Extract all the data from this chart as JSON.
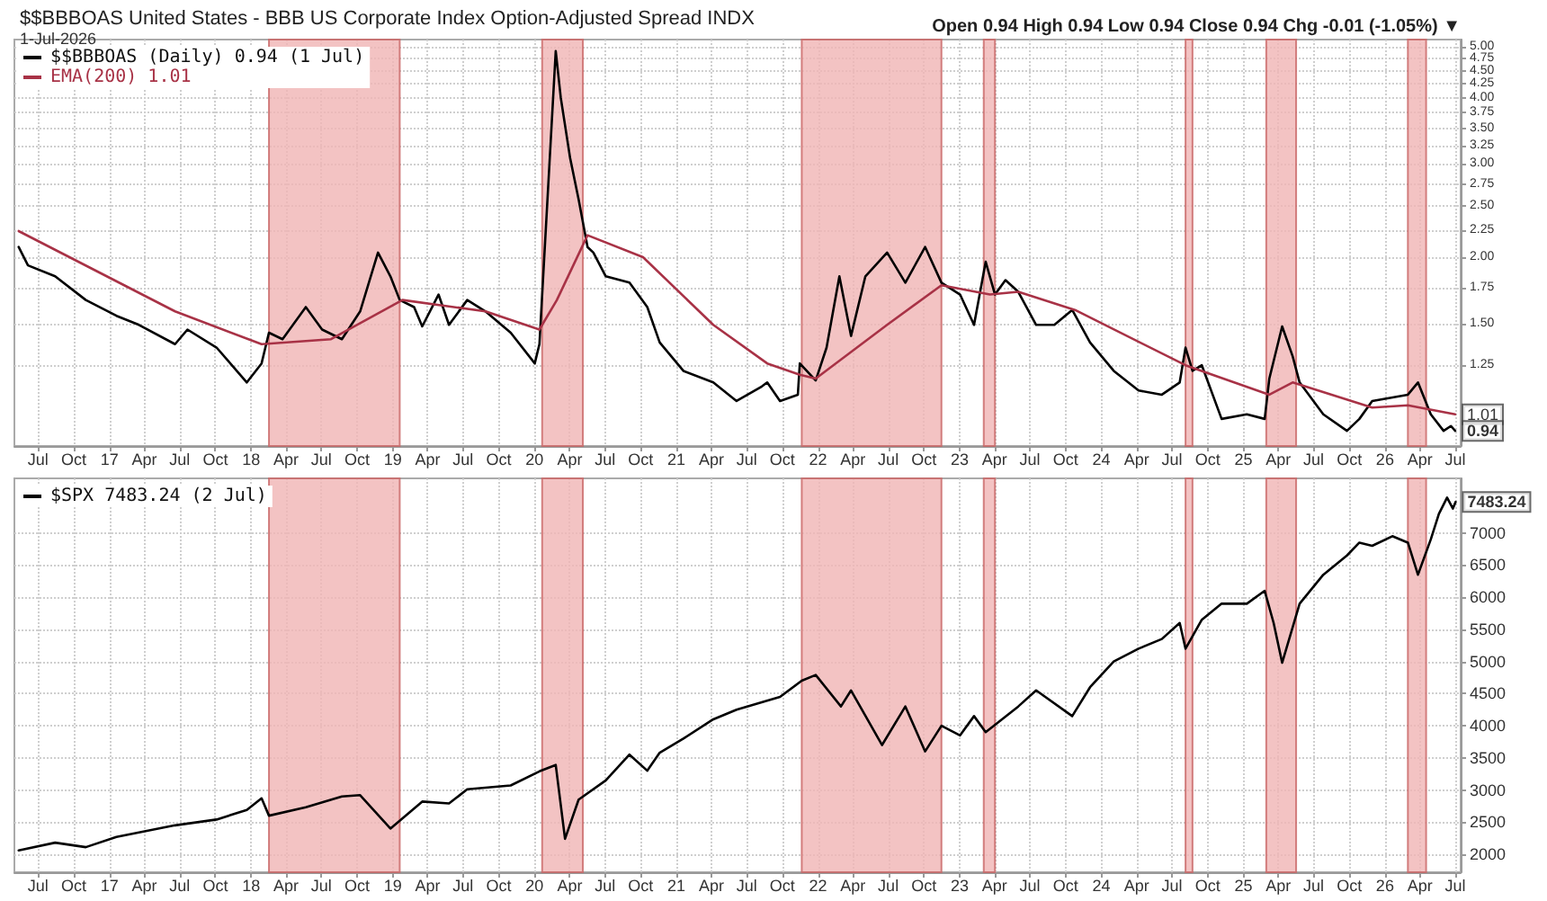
{
  "chart_data": [
    {
      "type": "line",
      "title": "$$BBBOAS United States - BBB US Corporate Index Option-Adjusted Spread INDX",
      "subtitle": "1-Jul-2026",
      "annotations": [
        "Open 0.94 High 0.94 Low 0.94 Close 0.94 Chg -0.01 (-1.05%) ▼",
        {
          "text": "1.01",
          "x": "2026-07-01",
          "y": 1.01
        },
        {
          "text": "0.94",
          "x": "2026-07-01",
          "y": 0.94
        }
      ],
      "series": [
        {
          "name": "$$BBBOAS (Daily) 0.94 (1 Jul)",
          "color": "#000000",
          "x": [
            "2016-05-12",
            "2016-06-05",
            "2016-08-14",
            "2016-11-01",
            "2017-01-19",
            "2017-03-18",
            "2017-06-19",
            "2017-07-21",
            "2017-10-04",
            "2017-12-21",
            "2018-01-28",
            "2018-02-16",
            "2018-03-23",
            "2018-05-22",
            "2018-07-03",
            "2018-08-23",
            "2018-10-09",
            "2018-11-24",
            "2018-12-26",
            "2019-01-19",
            "2019-02-25",
            "2019-03-18",
            "2019-04-29",
            "2019-05-26",
            "2019-07-12",
            "2019-08-28",
            "2019-11-01",
            "2020-01-02",
            "2020-01-14",
            "2020-02-25",
            "2020-03-09",
            "2020-04-02",
            "2020-04-24",
            "2020-05-17",
            "2020-06-01",
            "2020-07-03",
            "2020-09-02",
            "2020-10-18",
            "2020-11-19",
            "2021-01-19",
            "2021-04-06",
            "2021-06-05",
            "2021-08-09",
            "2021-08-23",
            "2021-09-25",
            "2021-11-10",
            "2021-11-15",
            "2021-12-26",
            "2022-01-23",
            "2022-02-25",
            "2022-03-27",
            "2022-05-03",
            "2022-06-28",
            "2022-08-14",
            "2022-10-04",
            "2022-11-15",
            "2023-01-02",
            "2023-02-07",
            "2023-03-09",
            "2023-04-02",
            "2023-04-29",
            "2023-06-01",
            "2023-07-17",
            "2023-09-02",
            "2023-10-18",
            "2023-12-03",
            "2024-02-02",
            "2024-04-06",
            "2024-06-05",
            "2024-07-21",
            "2024-08-05",
            "2024-08-23",
            "2024-09-16",
            "2024-11-06",
            "2025-01-10",
            "2025-02-25",
            "2025-03-09",
            "2025-04-11",
            "2025-05-08",
            "2025-05-26",
            "2025-07-26",
            "2025-09-25",
            "2025-10-27",
            "2025-11-29",
            "2026-03-01",
            "2026-03-27",
            "2026-04-29",
            "2026-06-01",
            "2026-06-20",
            "2026-07-01"
          ],
          "values": [
            2.09,
            1.93,
            1.84,
            1.66,
            1.55,
            1.49,
            1.37,
            1.46,
            1.35,
            1.16,
            1.26,
            1.44,
            1.4,
            1.61,
            1.46,
            1.4,
            1.58,
            2.04,
            1.84,
            1.66,
            1.61,
            1.48,
            1.7,
            1.49,
            1.66,
            1.58,
            1.44,
            1.26,
            1.37,
            4.9,
            4.0,
            3.08,
            2.57,
            2.09,
            2.04,
            1.84,
            1.79,
            1.61,
            1.38,
            1.22,
            1.16,
            1.07,
            1.14,
            1.16,
            1.07,
            1.1,
            1.26,
            1.17,
            1.35,
            1.84,
            1.42,
            1.84,
            2.04,
            1.79,
            2.09,
            1.79,
            1.7,
            1.49,
            1.96,
            1.7,
            1.81,
            1.72,
            1.49,
            1.49,
            1.59,
            1.38,
            1.22,
            1.12,
            1.1,
            1.16,
            1.35,
            1.22,
            1.25,
            0.99,
            1.01,
            0.99,
            1.18,
            1.48,
            1.3,
            1.16,
            1.01,
            0.94,
            0.99,
            1.07,
            1.1,
            1.16,
            1.01,
            0.94,
            0.96,
            0.94
          ]
        },
        {
          "name": "EMA(200) 1.01",
          "color": "#a83246",
          "x": [
            "2016-05-12",
            "2017-06-19",
            "2018-01-28",
            "2018-07-26",
            "2019-01-26",
            "2019-08-28",
            "2020-01-14",
            "2020-02-28",
            "2020-05-17",
            "2020-10-07",
            "2021-04-06",
            "2021-08-23",
            "2021-11-15",
            "2021-12-26",
            "2022-06-28",
            "2022-11-15",
            "2023-03-20",
            "2023-06-01",
            "2023-10-25",
            "2024-08-05",
            "2025-03-09",
            "2025-05-08",
            "2025-11-29",
            "2026-03-01",
            "2026-07-01"
          ],
          "values": [
            2.24,
            1.58,
            1.37,
            1.4,
            1.66,
            1.58,
            1.46,
            1.66,
            2.2,
            2.0,
            1.49,
            1.26,
            1.2,
            1.18,
            1.49,
            1.77,
            1.7,
            1.72,
            1.59,
            1.25,
            1.1,
            1.16,
            1.04,
            1.05,
            1.01
          ]
        }
      ],
      "bands": [
        {
          "axis": "x",
          "from": "2018-02-16",
          "to": "2019-01-19",
          "color": "#f0b4b4"
        },
        {
          "axis": "x",
          "from": "2020-01-21",
          "to": "2020-05-05",
          "color": "#f0b4b4"
        },
        {
          "axis": "x",
          "from": "2021-11-20",
          "to": "2022-11-15",
          "color": "#f0b4b4"
        },
        {
          "axis": "x",
          "from": "2023-03-04",
          "to": "2023-04-02",
          "color": "#f0b4b4"
        },
        {
          "axis": "x",
          "from": "2024-08-05",
          "to": "2024-08-23",
          "color": "#f0b4b4"
        },
        {
          "axis": "x",
          "from": "2025-03-01",
          "to": "2025-05-17",
          "color": "#f0b4b4"
        },
        {
          "axis": "x",
          "from": "2026-03-01",
          "to": "2026-04-17",
          "color": "#f0b4b4"
        }
      ],
      "xlim": [
        "2016-05-01",
        "2026-07-15"
      ],
      "log": "y",
      "ylim": [
        0.88,
        5.15
      ],
      "yticks": [
        1.25,
        {
          "value": 1.5,
          "label": "1.50"
        },
        1.75,
        {
          "value": 2,
          "label": "2.00"
        },
        2.25,
        {
          "value": 2.5,
          "label": "2.50"
        },
        2.75,
        {
          "value": 3,
          "label": "3.00"
        },
        3.25,
        {
          "value": 3.5,
          "label": "3.50"
        },
        3.75,
        {
          "value": 4,
          "label": "4.00"
        },
        4.25,
        {
          "value": 4.5,
          "label": "4.50"
        },
        4.75,
        {
          "value": 5,
          "label": "5.00"
        }
      ],
      "xticks": [
        {
          "value": "2016-07",
          "label": "Jul"
        },
        {
          "value": "2016-10",
          "label": "Oct"
        },
        {
          "value": "2017-01",
          "label": "17"
        },
        {
          "value": "2017-04",
          "label": "Apr"
        },
        {
          "value": "2017-07",
          "label": "Jul"
        },
        {
          "value": "2017-10",
          "label": "Oct"
        },
        {
          "value": "2018-01",
          "label": "18"
        },
        {
          "value": "2018-04",
          "label": "Apr"
        },
        {
          "value": "2018-07",
          "label": "Jul"
        },
        {
          "value": "2018-10",
          "label": "Oct"
        },
        {
          "value": "2019-01",
          "label": "19"
        },
        {
          "value": "2019-04",
          "label": "Apr"
        },
        {
          "value": "2019-07",
          "label": "Jul"
        },
        {
          "value": "2019-10",
          "label": "Oct"
        },
        {
          "value": "2020-01",
          "label": "20"
        },
        {
          "value": "2020-04",
          "label": "Apr"
        },
        {
          "value": "2020-07",
          "label": "Jul"
        },
        {
          "value": "2020-10",
          "label": "Oct"
        },
        {
          "value": "2021-01",
          "label": "21"
        },
        {
          "value": "2021-04",
          "label": "Apr"
        },
        {
          "value": "2021-07",
          "label": "Jul"
        },
        {
          "value": "2021-10",
          "label": "Oct"
        },
        {
          "value": "2022-01",
          "label": "22"
        },
        {
          "value": "2022-04",
          "label": "Apr"
        },
        {
          "value": "2022-07",
          "label": "Jul"
        },
        {
          "value": "2022-10",
          "label": "Oct"
        },
        {
          "value": "2023-01",
          "label": "23"
        },
        {
          "value": "2023-04",
          "label": "Apr"
        },
        {
          "value": "2023-07",
          "label": "Jul"
        },
        {
          "value": "2023-10",
          "label": "Oct"
        },
        {
          "value": "2024-01",
          "label": "24"
        },
        {
          "value": "2024-04",
          "label": "Apr"
        },
        {
          "value": "2024-07",
          "label": "Jul"
        },
        {
          "value": "2024-10",
          "label": "Oct"
        },
        {
          "value": "2025-01",
          "label": "25"
        },
        {
          "value": "2025-04",
          "label": "Apr"
        },
        {
          "value": "2025-07",
          "label": "Jul"
        },
        {
          "value": "2025-10",
          "label": "Oct"
        },
        {
          "value": "2026-01",
          "label": "26"
        },
        {
          "value": "2026-04",
          "label": "Apr"
        },
        {
          "value": "2026-07",
          "label": "Jul"
        }
      ],
      "grid": true,
      "legend": "top left"
    },
    {
      "type": "line",
      "annotations": [
        {
          "text": "7483.24",
          "x": "2026-07-02",
          "y": 7483.24
        }
      ],
      "series": [
        {
          "name": "$SPX 7483.24 (2 Jul)",
          "color": "#000000",
          "x": [
            "2016-05-12",
            "2016-08-14",
            "2016-11-01",
            "2017-01-19",
            "2017-06-19",
            "2017-10-04",
            "2017-12-21",
            "2018-01-28",
            "2018-02-16",
            "2018-05-22",
            "2018-08-23",
            "2018-10-09",
            "2018-12-26",
            "2019-03-18",
            "2019-05-26",
            "2019-07-12",
            "2019-11-01",
            "2020-01-14",
            "2020-02-25",
            "2020-03-20",
            "2020-04-24",
            "2020-07-03",
            "2020-09-02",
            "2020-10-18",
            "2020-11-19",
            "2021-01-19",
            "2021-04-06",
            "2021-06-05",
            "2021-09-25",
            "2021-11-20",
            "2021-12-26",
            "2022-03-01",
            "2022-03-27",
            "2022-06-15",
            "2022-08-14",
            "2022-10-04",
            "2022-11-15",
            "2023-01-02",
            "2023-02-07",
            "2023-03-09",
            "2023-06-01",
            "2023-07-17",
            "2023-10-18",
            "2023-12-03",
            "2024-02-02",
            "2024-04-06",
            "2024-06-05",
            "2024-07-21",
            "2024-08-05",
            "2024-09-16",
            "2024-11-06",
            "2025-01-10",
            "2025-02-25",
            "2025-03-20",
            "2025-04-11",
            "2025-05-26",
            "2025-07-26",
            "2025-09-25",
            "2025-10-27",
            "2025-11-29",
            "2026-01-20",
            "2026-03-01",
            "2026-03-27",
            "2026-04-29",
            "2026-05-20",
            "2026-06-10",
            "2026-06-25",
            "2026-07-02"
          ],
          "values": [
            2060,
            2180,
            2110,
            2270,
            2450,
            2540,
            2690,
            2870,
            2600,
            2730,
            2900,
            2920,
            2400,
            2820,
            2790,
            3010,
            3070,
            3290,
            3390,
            2240,
            2850,
            3150,
            3550,
            3300,
            3580,
            3800,
            4100,
            4250,
            4450,
            4700,
            4790,
            4300,
            4550,
            3700,
            4300,
            3600,
            4000,
            3850,
            4150,
            3900,
            4300,
            4550,
            4150,
            4600,
            5000,
            5200,
            5350,
            5600,
            5200,
            5650,
            5900,
            5900,
            6100,
            5600,
            4980,
            5900,
            6350,
            6650,
            6850,
            6800,
            6950,
            6850,
            6350,
            6900,
            7300,
            7550,
            7380,
            7483.24
          ]
        }
      ],
      "bands": [
        {
          "axis": "x",
          "from": "2018-02-16",
          "to": "2019-01-19",
          "color": "#f0b4b4"
        },
        {
          "axis": "x",
          "from": "2020-01-21",
          "to": "2020-05-05",
          "color": "#f0b4b4"
        },
        {
          "axis": "x",
          "from": "2021-11-20",
          "to": "2022-11-15",
          "color": "#f0b4b4"
        },
        {
          "axis": "x",
          "from": "2023-03-04",
          "to": "2023-04-02",
          "color": "#f0b4b4"
        },
        {
          "axis": "x",
          "from": "2024-08-05",
          "to": "2024-08-23",
          "color": "#f0b4b4"
        },
        {
          "axis": "x",
          "from": "2025-03-01",
          "to": "2025-05-17",
          "color": "#f0b4b4"
        },
        {
          "axis": "x",
          "from": "2026-03-01",
          "to": "2026-04-17",
          "color": "#f0b4b4"
        }
      ],
      "xlim": [
        "2016-05-01",
        "2026-07-15"
      ],
      "ylim": [
        1720,
        7850
      ],
      "yticks": [
        2000,
        2500,
        3000,
        3500,
        4000,
        4500,
        5000,
        5500,
        6000,
        6500,
        7000
      ],
      "xticks": [
        {
          "value": "2016-07",
          "label": "Jul"
        },
        {
          "value": "2016-10",
          "label": "Oct"
        },
        {
          "value": "2017-01",
          "label": "17"
        },
        {
          "value": "2017-04",
          "label": "Apr"
        },
        {
          "value": "2017-07",
          "label": "Jul"
        },
        {
          "value": "2017-10",
          "label": "Oct"
        },
        {
          "value": "2018-01",
          "label": "18"
        },
        {
          "value": "2018-04",
          "label": "Apr"
        },
        {
          "value": "2018-07",
          "label": "Jul"
        },
        {
          "value": "2018-10",
          "label": "Oct"
        },
        {
          "value": "2019-01",
          "label": "19"
        },
        {
          "value": "2019-04",
          "label": "Apr"
        },
        {
          "value": "2019-07",
          "label": "Jul"
        },
        {
          "value": "2019-10",
          "label": "Oct"
        },
        {
          "value": "2020-01",
          "label": "20"
        },
        {
          "value": "2020-04",
          "label": "Apr"
        },
        {
          "value": "2020-07",
          "label": "Jul"
        },
        {
          "value": "2020-10",
          "label": "Oct"
        },
        {
          "value": "2021-01",
          "label": "21"
        },
        {
          "value": "2021-04",
          "label": "Apr"
        },
        {
          "value": "2021-07",
          "label": "Jul"
        },
        {
          "value": "2021-10",
          "label": "Oct"
        },
        {
          "value": "2022-01",
          "label": "22"
        },
        {
          "value": "2022-04",
          "label": "Apr"
        },
        {
          "value": "2022-07",
          "label": "Jul"
        },
        {
          "value": "2022-10",
          "label": "Oct"
        },
        {
          "value": "2023-01",
          "label": "23"
        },
        {
          "value": "2023-04",
          "label": "Apr"
        },
        {
          "value": "2023-07",
          "label": "Jul"
        },
        {
          "value": "2023-10",
          "label": "Oct"
        },
        {
          "value": "2024-01",
          "label": "24"
        },
        {
          "value": "2024-04",
          "label": "Apr"
        },
        {
          "value": "2024-07",
          "label": "Jul"
        },
        {
          "value": "2024-10",
          "label": "Oct"
        },
        {
          "value": "2025-01",
          "label": "25"
        },
        {
          "value": "2025-04",
          "label": "Apr"
        },
        {
          "value": "2025-07",
          "label": "Jul"
        },
        {
          "value": "2025-10",
          "label": "Oct"
        },
        {
          "value": "2026-01",
          "label": "26"
        },
        {
          "value": "2026-04",
          "label": "Apr"
        },
        {
          "value": "2026-07",
          "label": "Jul"
        }
      ],
      "grid": true,
      "legend": "top left"
    }
  ]
}
